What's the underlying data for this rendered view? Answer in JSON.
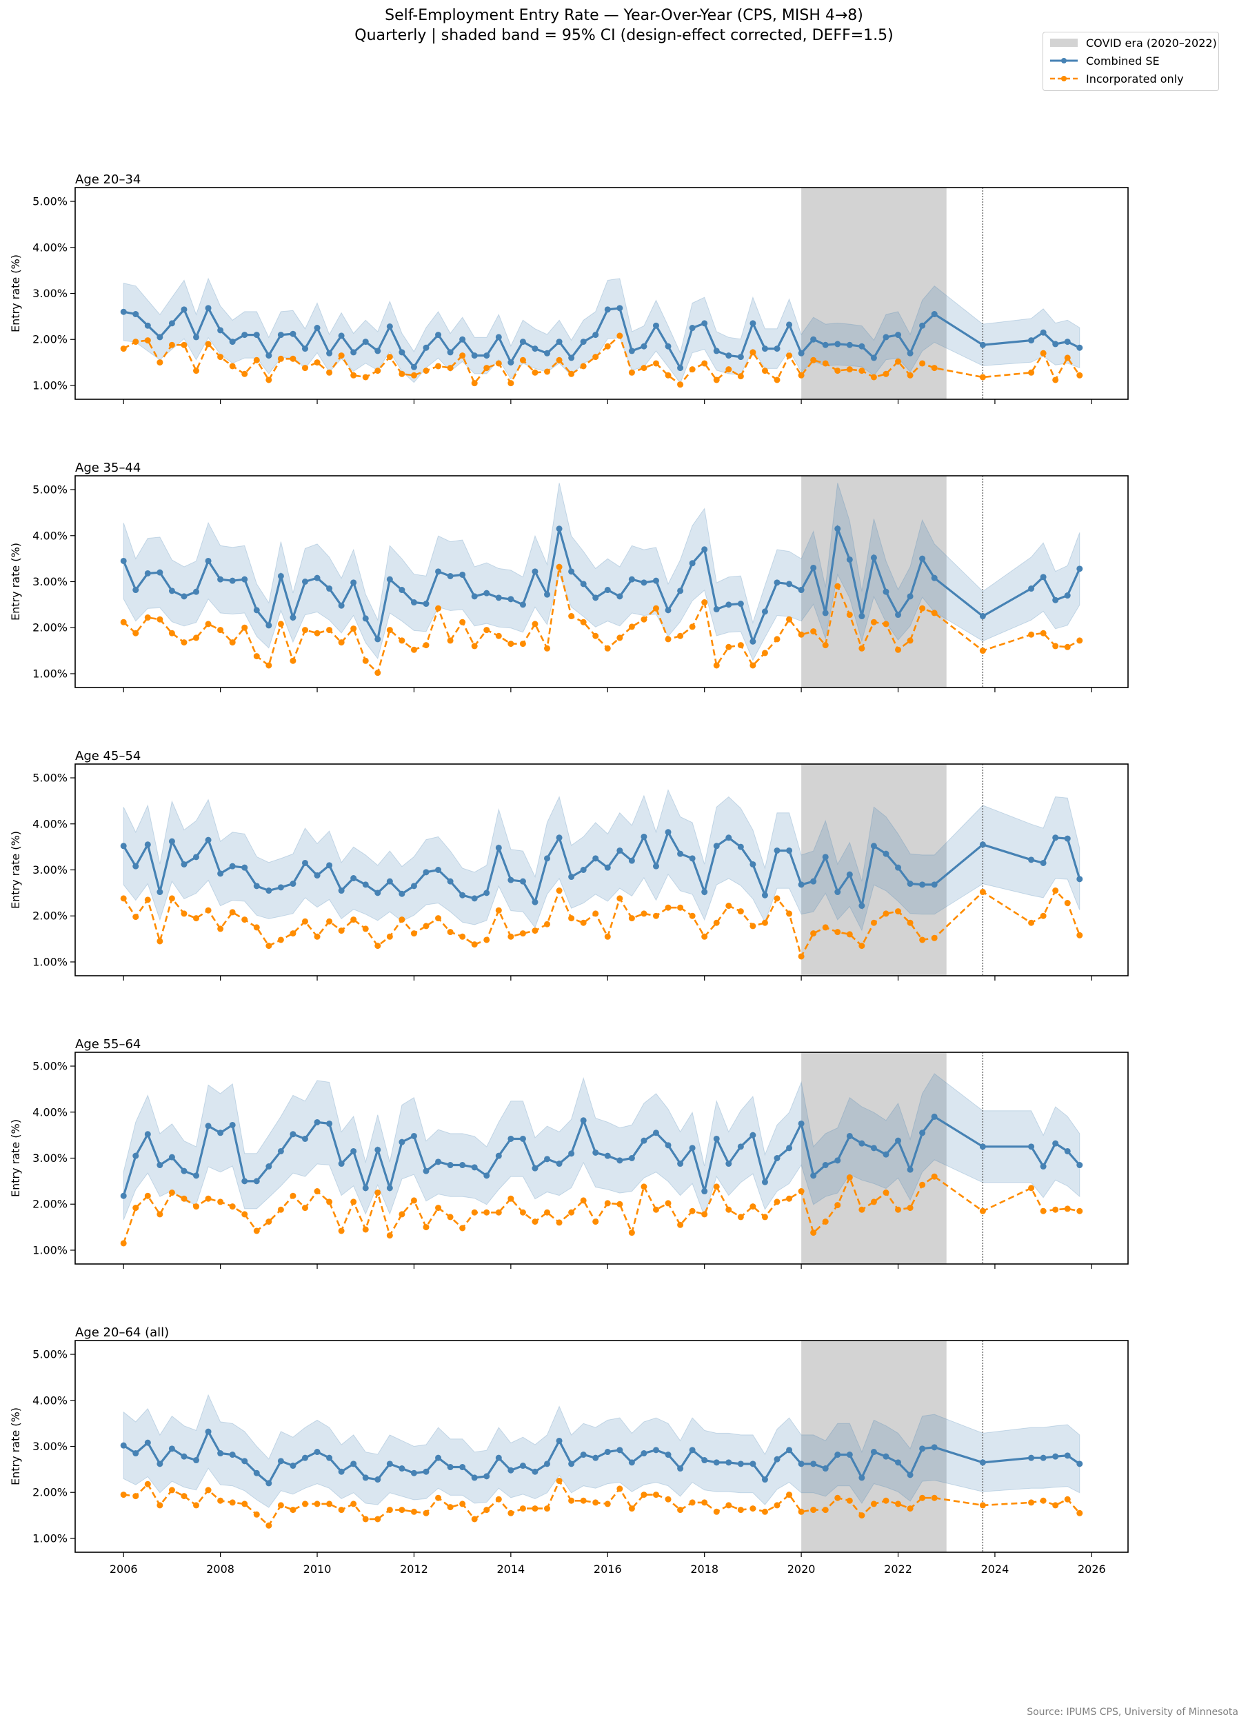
{
  "title": {
    "line1": "Self-Employment Entry Rate — Year-Over-Year (CPS, MISH 4→8)",
    "line2": "Quarterly  |  shaded band = 95% CI (design-effect corrected, DEFF=1.5)"
  },
  "legend": {
    "placement": "top-right",
    "items": [
      {
        "key": "covid",
        "label": "COVID era (2020–2022)",
        "color": "#d3d3d3"
      },
      {
        "key": "combined",
        "label": "Combined SE",
        "color": "#4682b4"
      },
      {
        "key": "incorporated",
        "label": "Incorporated only",
        "color": "#ff8c00"
      }
    ]
  },
  "source": "Source: IPUMS CPS, University of Minnesota",
  "chart_data": {
    "type": "line",
    "ylabel": "Entry rate (%)",
    "x_ticks": [
      "2006",
      "2008",
      "2010",
      "2012",
      "2014",
      "2016",
      "2018",
      "2020",
      "2022",
      "2024",
      "2026"
    ],
    "y_ticks": [
      "1.00%",
      "2.00%",
      "3.00%",
      "4.00%",
      "5.00%"
    ],
    "xlim": [
      2005.0,
      2026.75
    ],
    "ylim": [
      0.7,
      5.3
    ],
    "covid_band": [
      2020.0,
      2023.0
    ],
    "reference_line_x": 2023.75,
    "ci_halfwidth_ratio": 0.24,
    "colors": {
      "combined": "#4682b4",
      "incorporated": "#ff8c00",
      "ci": "#4682b4",
      "covid": "#d3d3d3"
    },
    "x": [
      2006.0,
      2006.25,
      2006.5,
      2006.75,
      2007.0,
      2007.25,
      2007.5,
      2007.75,
      2008.0,
      2008.25,
      2008.5,
      2008.75,
      2009.0,
      2009.25,
      2009.5,
      2009.75,
      2010.0,
      2010.25,
      2010.5,
      2010.75,
      2011.0,
      2011.25,
      2011.5,
      2011.75,
      2012.0,
      2012.25,
      2012.5,
      2012.75,
      2013.0,
      2013.25,
      2013.5,
      2013.75,
      2014.0,
      2014.25,
      2014.5,
      2014.75,
      2015.0,
      2015.25,
      2015.5,
      2015.75,
      2016.0,
      2016.25,
      2016.5,
      2016.75,
      2017.0,
      2017.25,
      2017.5,
      2017.75,
      2018.0,
      2018.25,
      2018.5,
      2018.75,
      2019.0,
      2019.25,
      2019.5,
      2019.75,
      2020.0,
      2020.25,
      2020.5,
      2020.75,
      2021.0,
      2021.25,
      2021.5,
      2021.75,
      2022.0,
      2022.25,
      2022.5,
      2022.75,
      2023.75,
      2024.75,
      2025.0,
      2025.25,
      2025.5,
      2025.75
    ],
    "panels": [
      {
        "label": "Age 20–34",
        "series": [
          {
            "name": "Combined SE",
            "key": "combined",
            "values": [
              2.6,
              2.55,
              2.3,
              2.05,
              2.35,
              2.65,
              2.05,
              2.68,
              2.2,
              1.95,
              2.1,
              2.1,
              1.65,
              2.1,
              2.12,
              1.8,
              2.25,
              1.7,
              2.08,
              1.72,
              1.95,
              1.75,
              2.28,
              1.72,
              1.4,
              1.82,
              2.1,
              1.72,
              2.0,
              1.65,
              1.65,
              2.05,
              1.5,
              1.95,
              1.8,
              1.7,
              1.95,
              1.6,
              1.95,
              2.1,
              2.65,
              2.68,
              1.75,
              1.85,
              2.3,
              1.85,
              1.38,
              2.25,
              2.35,
              1.75,
              1.65,
              1.62,
              2.35,
              1.8,
              1.8,
              2.32,
              1.7,
              2.0,
              1.88,
              1.9,
              1.88,
              1.85,
              1.6,
              2.05,
              2.1,
              1.7,
              2.3,
              2.55,
              1.88,
              1.98,
              2.15,
              1.9,
              1.95,
              1.82
            ]
          },
          {
            "name": "Incorporated only",
            "key": "incorporated",
            "values": [
              1.8,
              1.95,
              1.98,
              1.5,
              1.88,
              1.88,
              1.32,
              1.9,
              1.62,
              1.42,
              1.25,
              1.55,
              1.12,
              1.58,
              1.58,
              1.38,
              1.5,
              1.28,
              1.65,
              1.22,
              1.18,
              1.32,
              1.62,
              1.25,
              1.22,
              1.32,
              1.42,
              1.38,
              1.65,
              1.05,
              1.38,
              1.48,
              1.05,
              1.55,
              1.28,
              1.3,
              1.55,
              1.25,
              1.42,
              1.62,
              1.85,
              2.08,
              1.28,
              1.38,
              1.48,
              1.22,
              1.02,
              1.35,
              1.48,
              1.12,
              1.35,
              1.2,
              1.72,
              1.32,
              1.12,
              1.65,
              1.22,
              1.55,
              1.48,
              1.32,
              1.35,
              1.32,
              1.18,
              1.25,
              1.52,
              1.22,
              1.48,
              1.38,
              1.18,
              1.28,
              1.7,
              1.12,
              1.6,
              1.22
            ]
          }
        ]
      },
      {
        "label": "Age 35–44",
        "series": [
          {
            "name": "Combined SE",
            "key": "combined",
            "values": [
              3.45,
              2.82,
              3.18,
              3.2,
              2.8,
              2.68,
              2.78,
              3.45,
              3.05,
              3.02,
              3.05,
              2.38,
              2.05,
              3.12,
              2.22,
              3.0,
              3.08,
              2.85,
              2.48,
              2.98,
              2.2,
              1.75,
              3.05,
              2.82,
              2.55,
              2.52,
              3.22,
              3.12,
              3.15,
              2.68,
              2.75,
              2.65,
              2.62,
              2.5,
              3.22,
              2.72,
              4.15,
              3.22,
              2.95,
              2.65,
              2.82,
              2.68,
              3.05,
              2.98,
              3.02,
              2.38,
              2.8,
              3.4,
              3.7,
              2.4,
              2.5,
              2.52,
              1.7,
              2.35,
              2.98,
              2.95,
              2.82,
              3.3,
              2.32,
              4.15,
              3.48,
              2.25,
              3.52,
              2.78,
              2.28,
              2.68,
              3.5,
              3.08,
              2.25,
              2.85,
              3.1,
              2.6,
              2.7,
              3.28
            ]
          },
          {
            "name": "Incorporated only",
            "key": "incorporated",
            "values": [
              2.12,
              1.88,
              2.22,
              2.18,
              1.88,
              1.68,
              1.78,
              2.08,
              1.95,
              1.68,
              2.0,
              1.38,
              1.18,
              2.08,
              1.28,
              1.95,
              1.88,
              1.95,
              1.68,
              1.98,
              1.28,
              1.02,
              1.95,
              1.72,
              1.52,
              1.62,
              2.42,
              1.72,
              2.12,
              1.6,
              1.95,
              1.82,
              1.65,
              1.65,
              2.08,
              1.55,
              3.32,
              2.25,
              2.12,
              1.82,
              1.55,
              1.78,
              2.02,
              2.18,
              2.42,
              1.75,
              1.82,
              2.02,
              2.55,
              1.18,
              1.58,
              1.62,
              1.18,
              1.45,
              1.75,
              2.18,
              1.85,
              1.92,
              1.62,
              2.9,
              2.28,
              1.55,
              2.12,
              2.08,
              1.52,
              1.72,
              2.42,
              2.32,
              1.5,
              1.85,
              1.88,
              1.6,
              1.58,
              1.72
            ]
          }
        ]
      },
      {
        "label": "Age 45–54",
        "series": [
          {
            "name": "Combined SE",
            "key": "combined",
            "values": [
              3.52,
              3.08,
              3.55,
              2.52,
              3.62,
              3.12,
              3.28,
              3.65,
              2.92,
              3.08,
              3.05,
              2.65,
              2.55,
              2.62,
              2.7,
              3.15,
              2.88,
              3.1,
              2.55,
              2.82,
              2.68,
              2.5,
              2.75,
              2.48,
              2.65,
              2.95,
              3.0,
              2.75,
              2.45,
              2.38,
              2.5,
              3.48,
              2.78,
              2.75,
              2.3,
              3.25,
              3.7,
              2.85,
              3.0,
              3.25,
              3.05,
              3.42,
              3.2,
              3.72,
              3.08,
              3.82,
              3.35,
              3.25,
              2.52,
              3.52,
              3.7,
              3.5,
              3.12,
              2.45,
              3.42,
              3.42,
              2.68,
              2.75,
              3.28,
              2.52,
              2.9,
              2.22,
              3.52,
              3.35,
              3.05,
              2.7,
              2.68,
              2.68,
              3.55,
              3.22,
              3.15,
              3.7,
              3.68,
              2.8
            ]
          },
          {
            "name": "Incorporated only",
            "key": "incorporated",
            "values": [
              2.38,
              1.98,
              2.35,
              1.45,
              2.38,
              2.05,
              1.95,
              2.12,
              1.72,
              2.08,
              1.92,
              1.75,
              1.35,
              1.48,
              1.62,
              1.88,
              1.55,
              1.88,
              1.68,
              1.92,
              1.72,
              1.35,
              1.55,
              1.92,
              1.62,
              1.78,
              1.95,
              1.65,
              1.55,
              1.38,
              1.48,
              2.12,
              1.55,
              1.62,
              1.68,
              1.82,
              2.55,
              1.95,
              1.85,
              2.05,
              1.55,
              2.38,
              1.95,
              2.05,
              2.0,
              2.18,
              2.18,
              2.0,
              1.55,
              1.85,
              2.22,
              2.1,
              1.78,
              1.85,
              2.38,
              2.05,
              1.12,
              1.62,
              1.75,
              1.65,
              1.6,
              1.35,
              1.85,
              2.05,
              2.1,
              1.85,
              1.48,
              1.52,
              2.52,
              1.85,
              2.0,
              2.55,
              2.28,
              1.58
            ]
          }
        ]
      },
      {
        "label": "Age 55–64",
        "series": [
          {
            "name": "Combined SE",
            "key": "combined",
            "values": [
              2.18,
              3.05,
              3.52,
              2.85,
              3.02,
              2.72,
              2.62,
              3.7,
              3.55,
              3.72,
              2.5,
              2.5,
              2.82,
              3.15,
              3.52,
              3.42,
              3.78,
              3.75,
              2.88,
              3.15,
              2.35,
              3.18,
              2.35,
              3.35,
              3.48,
              2.72,
              2.92,
              2.85,
              2.85,
              2.8,
              2.62,
              3.05,
              3.42,
              3.42,
              2.78,
              2.98,
              2.88,
              3.1,
              3.82,
              3.12,
              3.05,
              2.95,
              3.0,
              3.38,
              3.55,
              3.28,
              2.88,
              3.22,
              2.28,
              3.42,
              2.88,
              3.25,
              3.5,
              2.48,
              3.0,
              3.22,
              3.75,
              2.62,
              2.85,
              2.95,
              3.48,
              3.32,
              3.22,
              3.08,
              3.38,
              2.75,
              3.55,
              3.9,
              3.25,
              3.25,
              2.82,
              3.32,
              3.15,
              2.85
            ]
          },
          {
            "name": "Incorporated only",
            "key": "incorporated",
            "values": [
              1.15,
              1.92,
              2.18,
              1.78,
              2.25,
              2.12,
              1.95,
              2.12,
              2.05,
              1.95,
              1.78,
              1.42,
              1.62,
              1.88,
              2.18,
              1.92,
              2.28,
              2.05,
              1.42,
              2.05,
              1.45,
              2.25,
              1.32,
              1.78,
              2.08,
              1.5,
              1.92,
              1.72,
              1.48,
              1.82,
              1.82,
              1.82,
              2.12,
              1.82,
              1.62,
              1.82,
              1.6,
              1.82,
              2.08,
              1.62,
              2.02,
              2.0,
              1.38,
              2.38,
              1.88,
              2.02,
              1.55,
              1.85,
              1.78,
              2.38,
              1.88,
              1.72,
              1.95,
              1.72,
              2.05,
              2.12,
              2.28,
              1.38,
              1.62,
              1.98,
              2.58,
              1.88,
              2.05,
              2.25,
              1.88,
              1.92,
              2.42,
              2.6,
              1.85,
              2.35,
              1.85,
              1.88,
              1.9,
              1.85
            ]
          }
        ]
      },
      {
        "label": "Age 20–64 (all)",
        "series": [
          {
            "name": "Combined SE",
            "key": "combined",
            "values": [
              3.02,
              2.85,
              3.08,
              2.62,
              2.95,
              2.78,
              2.7,
              3.32,
              2.85,
              2.82,
              2.68,
              2.42,
              2.2,
              2.68,
              2.58,
              2.75,
              2.88,
              2.75,
              2.45,
              2.62,
              2.32,
              2.28,
              2.62,
              2.52,
              2.42,
              2.45,
              2.75,
              2.55,
              2.55,
              2.32,
              2.35,
              2.75,
              2.48,
              2.58,
              2.45,
              2.62,
              3.12,
              2.62,
              2.82,
              2.75,
              2.88,
              2.92,
              2.65,
              2.85,
              2.92,
              2.82,
              2.52,
              2.92,
              2.7,
              2.65,
              2.65,
              2.62,
              2.62,
              2.28,
              2.72,
              2.92,
              2.62,
              2.62,
              2.52,
              2.82,
              2.82,
              2.32,
              2.88,
              2.78,
              2.65,
              2.38,
              2.95,
              2.98,
              2.65,
              2.75,
              2.75,
              2.78,
              2.8,
              2.62
            ]
          },
          {
            "name": "Incorporated only",
            "key": "incorporated",
            "values": [
              1.95,
              1.92,
              2.18,
              1.72,
              2.05,
              1.92,
              1.72,
              2.05,
              1.82,
              1.78,
              1.75,
              1.52,
              1.28,
              1.72,
              1.62,
              1.75,
              1.75,
              1.75,
              1.62,
              1.75,
              1.42,
              1.42,
              1.62,
              1.62,
              1.58,
              1.55,
              1.88,
              1.68,
              1.75,
              1.42,
              1.62,
              1.85,
              1.55,
              1.65,
              1.65,
              1.65,
              2.25,
              1.82,
              1.82,
              1.78,
              1.75,
              2.08,
              1.65,
              1.95,
              1.95,
              1.85,
              1.62,
              1.78,
              1.78,
              1.58,
              1.72,
              1.62,
              1.65,
              1.58,
              1.72,
              1.95,
              1.58,
              1.62,
              1.62,
              1.88,
              1.82,
              1.5,
              1.75,
              1.82,
              1.75,
              1.65,
              1.88,
              1.88,
              1.72,
              1.78,
              1.82,
              1.72,
              1.85,
              1.55
            ]
          }
        ]
      }
    ]
  }
}
